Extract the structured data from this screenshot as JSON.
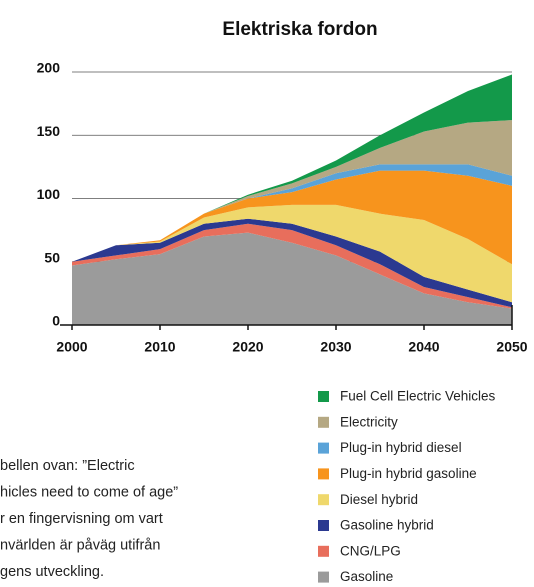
{
  "chart_data": {
    "type": "stacked-area",
    "title": "Elektriska fordon",
    "x": [
      2000,
      2005,
      2010,
      2015,
      2020,
      2025,
      2030,
      2035,
      2040,
      2045,
      2050
    ],
    "series": [
      {
        "name": "Gasoline",
        "color": "#9b9b9b",
        "values": [
          47,
          52,
          56,
          70,
          73,
          65,
          55,
          40,
          25,
          18,
          13
        ]
      },
      {
        "name": "CNG/LPG",
        "color": "#e86e5c",
        "values": [
          3,
          3,
          4,
          5,
          7,
          10,
          8,
          8,
          5,
          4,
          1
        ]
      },
      {
        "name": "Gasoline hybrid",
        "color": "#2b3990",
        "values": [
          0,
          8,
          5,
          5,
          4,
          5,
          7,
          10,
          8,
          6,
          4
        ]
      },
      {
        "name": "Diesel hybrid",
        "color": "#efd86c",
        "values": [
          0,
          0,
          1,
          5,
          9,
          15,
          25,
          30,
          45,
          40,
          30
        ]
      },
      {
        "name": "Plug-in hybrid gasoline",
        "color": "#f7941d",
        "values": [
          0,
          0,
          1,
          3,
          7,
          10,
          20,
          34,
          39,
          50,
          62
        ]
      },
      {
        "name": "Plug-in hybrid diesel",
        "color": "#5aa3d8",
        "values": [
          0,
          0,
          0,
          0,
          0,
          3,
          5,
          5,
          5,
          9,
          8
        ]
      },
      {
        "name": "Electricity",
        "color": "#b5a883",
        "values": [
          0,
          0,
          0,
          0,
          2,
          4,
          5,
          13,
          26,
          33,
          44
        ]
      },
      {
        "name": "Fuel Cell Electric Vehicles",
        "color": "#13994a",
        "values": [
          0,
          0,
          0,
          0,
          1,
          2,
          5,
          10,
          15,
          25,
          36
        ]
      }
    ],
    "xlim": [
      2000,
      2050
    ],
    "xticks": [
      2000,
      2010,
      2020,
      2030,
      2040,
      2050
    ],
    "ylim": [
      0,
      200
    ],
    "yticks": [
      0,
      50,
      100,
      150,
      200
    ],
    "grid": true
  },
  "text": {
    "lines": [
      "bellen ovan: ”Electric",
      "hicles need to come of age”",
      "r en fingervisning om vart",
      "nvärlden är påväg utifrån",
      "gens utveckling."
    ]
  }
}
